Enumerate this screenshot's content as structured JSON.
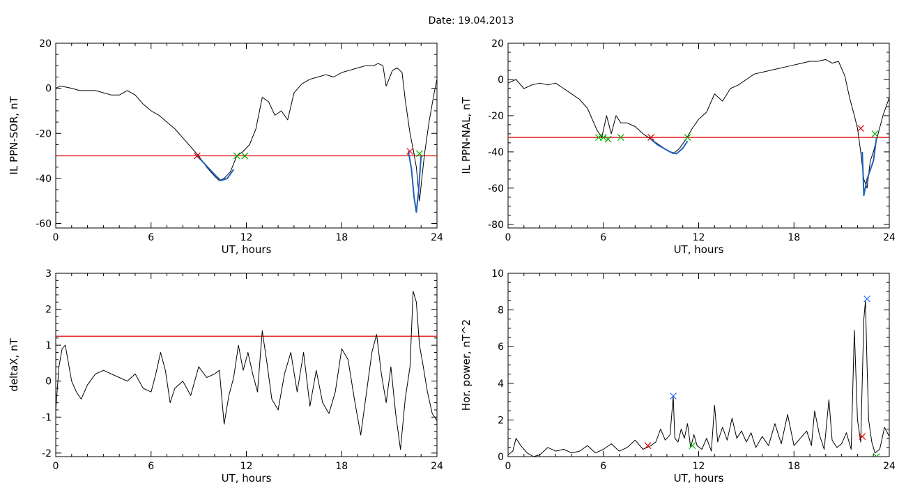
{
  "figure": {
    "title": "Date:  19.04.2013"
  },
  "chart_data": [
    {
      "type": "line",
      "xlabel": "UT, hours",
      "ylabel": "IL PPN-SOR, nT",
      "xlim": [
        0,
        24
      ],
      "ylim": [
        -62,
        20
      ],
      "xticks": [
        "0",
        "6",
        "12",
        "18",
        "24"
      ],
      "yticks": [
        -60,
        -40,
        -20,
        0,
        20
      ],
      "grid": false,
      "colors": {
        "line": "#000000",
        "highlight": "#1f5fbf",
        "threshold": "#e00000"
      },
      "threshold": -30,
      "series": [
        {
          "role": "main",
          "x": [
            0,
            0.3,
            1,
            1.5,
            2,
            2.5,
            3,
            3.5,
            4,
            4.5,
            5,
            5.5,
            6,
            6.5,
            7,
            7.5,
            8,
            8.5,
            9,
            9.5,
            10,
            10.3,
            10.6,
            11,
            11.4,
            11.8,
            12.2,
            12.6,
            13.0,
            13.4,
            13.8,
            14.2,
            14.6,
            15,
            15.5,
            16,
            16.5,
            17,
            17.5,
            18,
            18.5,
            19,
            19.5,
            20,
            20.3,
            20.6,
            20.8,
            21.2,
            21.5,
            21.8,
            22.0,
            22.3,
            22.5,
            22.7,
            22.9,
            23.2,
            23.5,
            23.8,
            24
          ],
          "y": [
            0,
            1,
            0,
            -1,
            -1,
            -1,
            -2,
            -3,
            -3,
            -1,
            -3,
            -7,
            -10,
            -12,
            -15,
            -18,
            -22,
            -26,
            -30,
            -35,
            -39,
            -41,
            -40,
            -37,
            -30,
            -28,
            -25,
            -18,
            -4,
            -6,
            -12,
            -10,
            -14,
            -2,
            2,
            4,
            5,
            6,
            5,
            7,
            8,
            9,
            10,
            10,
            11,
            10,
            1,
            8,
            9,
            7,
            -5,
            -20,
            -27,
            -35,
            -50,
            -30,
            -15,
            -3,
            4
          ]
        },
        {
          "role": "highlight",
          "x": [
            8.9,
            9.3,
            9.7,
            10.1,
            10.4,
            10.8,
            11.2
          ],
          "y": [
            -30,
            -33,
            -36,
            -39,
            -41,
            -40,
            -36
          ]
        },
        {
          "role": "highlight",
          "x": [
            22.2,
            22.4,
            22.55,
            22.7,
            22.85,
            23.0
          ],
          "y": [
            -28,
            -36,
            -48,
            -55,
            -45,
            -30
          ]
        }
      ],
      "markers": [
        {
          "x": 8.9,
          "y": -30,
          "color": "#e00000"
        },
        {
          "x": 11.4,
          "y": -30,
          "color": "#00b000"
        },
        {
          "x": 11.9,
          "y": -30,
          "color": "#00b000"
        },
        {
          "x": 22.3,
          "y": -28,
          "color": "#e00000"
        },
        {
          "x": 22.9,
          "y": -29,
          "color": "#00b000"
        }
      ]
    },
    {
      "type": "line",
      "xlabel": "UT, hours",
      "ylabel": "IL PPN-NAL, nT",
      "xlim": [
        0,
        24
      ],
      "ylim": [
        -82,
        20
      ],
      "xticks": [
        "0",
        "6",
        "12",
        "18",
        "24"
      ],
      "yticks": [
        -80,
        -60,
        -40,
        -20,
        0,
        20
      ],
      "grid": false,
      "colors": {
        "line": "#000000",
        "highlight": "#1f5fbf",
        "threshold": "#e00000"
      },
      "threshold": -32,
      "series": [
        {
          "role": "main",
          "x": [
            0,
            0.5,
            1,
            1.5,
            2,
            2.5,
            3,
            3.5,
            4,
            4.5,
            5,
            5.3,
            5.6,
            5.9,
            6.2,
            6.5,
            6.8,
            7.1,
            7.5,
            8,
            8.5,
            9,
            9.5,
            10,
            10.4,
            10.8,
            11.2,
            11.6,
            12,
            12.5,
            13,
            13.5,
            14,
            14.5,
            15,
            15.5,
            16,
            16.5,
            17,
            17.5,
            18,
            18.5,
            19,
            19.5,
            20,
            20.4,
            20.8,
            21.2,
            21.5,
            21.8,
            22.0,
            22.2,
            22.4,
            22.6,
            22.8,
            23.0,
            23.3,
            23.6,
            24
          ],
          "y": [
            -2,
            0,
            -5,
            -3,
            -2,
            -3,
            -2,
            -5,
            -8,
            -11,
            -16,
            -22,
            -28,
            -32,
            -20,
            -30,
            -20,
            -24,
            -24,
            -26,
            -30,
            -33,
            -36,
            -39,
            -41,
            -38,
            -33,
            -27,
            -22,
            -18,
            -8,
            -12,
            -5,
            -3,
            0,
            3,
            4,
            5,
            6,
            7,
            8,
            9,
            10,
            10,
            11,
            9,
            10,
            2,
            -10,
            -20,
            -27,
            -40,
            -55,
            -60,
            -45,
            -40,
            -30,
            -20,
            -10
          ]
        },
        {
          "role": "highlight",
          "x": [
            9.0,
            9.4,
            9.8,
            10.2,
            10.6,
            11.0,
            11.3
          ],
          "y": [
            -33,
            -36,
            -38,
            -40,
            -41,
            -38,
            -34
          ]
        },
        {
          "role": "highlight",
          "x": [
            22.3,
            22.4,
            22.6,
            22.8,
            23.0,
            23.2
          ],
          "y": [
            -40,
            -64,
            -55,
            -50,
            -45,
            -32
          ]
        }
      ],
      "markers": [
        {
          "x": 5.7,
          "y": -32,
          "color": "#00b000"
        },
        {
          "x": 6.0,
          "y": -32,
          "color": "#00b000"
        },
        {
          "x": 6.3,
          "y": -33,
          "color": "#00b000"
        },
        {
          "x": 7.1,
          "y": -32,
          "color": "#00b000"
        },
        {
          "x": 9.0,
          "y": -32,
          "color": "#e00000"
        },
        {
          "x": 11.3,
          "y": -32,
          "color": "#00b000"
        },
        {
          "x": 22.2,
          "y": -27,
          "color": "#e00000"
        },
        {
          "x": 23.1,
          "y": -30,
          "color": "#00b000"
        }
      ]
    },
    {
      "type": "line",
      "xlabel": "UT, hours",
      "ylabel": "deltaX, nT",
      "xlim": [
        0,
        24
      ],
      "ylim": [
        -2.1,
        3
      ],
      "xticks": [
        "0",
        "6",
        "12",
        "18",
        "24"
      ],
      "yticks": [
        -2,
        -1,
        0,
        1,
        2,
        3
      ],
      "grid": false,
      "colors": {
        "line": "#000000",
        "threshold": "#e00000"
      },
      "threshold": 1.25,
      "series": [
        {
          "role": "main",
          "x": [
            0,
            0.2,
            0.4,
            0.6,
            0.8,
            1.0,
            1.3,
            1.6,
            2.0,
            2.5,
            3.0,
            3.5,
            4.0,
            4.5,
            5.0,
            5.5,
            6.0,
            6.3,
            6.6,
            6.9,
            7.2,
            7.5,
            8.0,
            8.5,
            9.0,
            9.5,
            10.0,
            10.3,
            10.6,
            10.9,
            11.2,
            11.5,
            11.8,
            12.1,
            12.4,
            12.7,
            13.0,
            13.3,
            13.6,
            14.0,
            14.4,
            14.8,
            15.2,
            15.6,
            16.0,
            16.4,
            16.8,
            17.2,
            17.6,
            18.0,
            18.4,
            18.8,
            19.2,
            19.6,
            19.9,
            20.2,
            20.5,
            20.8,
            21.1,
            21.4,
            21.7,
            22.0,
            22.3,
            22.5,
            22.7,
            22.9,
            23.1,
            23.4,
            23.7,
            24
          ],
          "y": [
            -0.8,
            0.4,
            0.9,
            1.0,
            0.5,
            0.0,
            -0.3,
            -0.5,
            -0.1,
            0.2,
            0.3,
            0.2,
            0.1,
            0.0,
            0.2,
            -0.2,
            -0.3,
            0.2,
            0.8,
            0.3,
            -0.6,
            -0.2,
            0.0,
            -0.4,
            0.4,
            0.1,
            0.2,
            0.3,
            -1.2,
            -0.4,
            0.1,
            1.0,
            0.3,
            0.8,
            0.2,
            -0.3,
            1.4,
            0.5,
            -0.5,
            -0.8,
            0.2,
            0.8,
            -0.3,
            0.8,
            -0.7,
            0.3,
            -0.6,
            -0.9,
            -0.3,
            0.9,
            0.6,
            -0.5,
            -1.5,
            -0.2,
            0.8,
            1.3,
            0.2,
            -0.6,
            0.4,
            -0.9,
            -1.9,
            -0.5,
            0.4,
            2.5,
            2.2,
            1.0,
            0.5,
            -0.3,
            -0.9,
            -1.1
          ]
        }
      ],
      "markers": []
    },
    {
      "type": "line",
      "xlabel": "UT, hours",
      "ylabel": "Hor. power, nT^2",
      "xlim": [
        0,
        24
      ],
      "ylim": [
        0,
        10
      ],
      "xticks": [
        "0",
        "6",
        "12",
        "18",
        "24"
      ],
      "yticks": [
        0,
        2,
        4,
        6,
        8,
        10
      ],
      "grid": false,
      "colors": {
        "line": "#000000"
      },
      "series": [
        {
          "role": "main",
          "x": [
            0,
            0.3,
            0.5,
            0.8,
            1.2,
            1.6,
            2.0,
            2.5,
            3.0,
            3.5,
            4.0,
            4.5,
            5.0,
            5.5,
            6.0,
            6.5,
            7.0,
            7.5,
            8.0,
            8.5,
            9.0,
            9.3,
            9.6,
            9.9,
            10.2,
            10.4,
            10.5,
            10.7,
            10.9,
            11.1,
            11.3,
            11.5,
            11.7,
            11.9,
            12.2,
            12.5,
            12.8,
            13.0,
            13.2,
            13.5,
            13.8,
            14.1,
            14.4,
            14.7,
            15.0,
            15.3,
            15.6,
            16.0,
            16.4,
            16.8,
            17.2,
            17.6,
            18.0,
            18.4,
            18.8,
            19.1,
            19.3,
            19.6,
            19.9,
            20.2,
            20.4,
            20.7,
            21.0,
            21.3,
            21.6,
            21.8,
            22.0,
            22.2,
            22.4,
            22.5,
            22.6,
            22.7,
            22.9,
            23.1,
            23.4,
            23.7,
            24
          ],
          "y": [
            0.1,
            0.3,
            1.0,
            0.6,
            0.2,
            0.0,
            0.1,
            0.5,
            0.3,
            0.4,
            0.2,
            0.3,
            0.6,
            0.2,
            0.4,
            0.7,
            0.3,
            0.5,
            0.9,
            0.4,
            0.6,
            0.8,
            1.5,
            0.9,
            1.2,
            3.3,
            1.0,
            0.8,
            1.5,
            1.0,
            1.8,
            0.5,
            1.2,
            0.6,
            0.4,
            1.0,
            0.3,
            2.8,
            0.8,
            1.6,
            0.9,
            2.1,
            1.0,
            1.4,
            0.8,
            1.3,
            0.5,
            1.1,
            0.6,
            1.8,
            0.7,
            2.3,
            0.6,
            1.0,
            1.4,
            0.6,
            2.5,
            1.2,
            0.4,
            3.1,
            0.9,
            0.5,
            0.7,
            1.3,
            0.4,
            6.9,
            2.0,
            0.8,
            7.5,
            8.5,
            5.0,
            2.0,
            0.8,
            0.2,
            0.4,
            1.6,
            1.1
          ]
        }
      ],
      "markers": [
        {
          "x": 8.8,
          "y": 0.6,
          "color": "#e00000"
        },
        {
          "x": 10.4,
          "y": 3.3,
          "color": "#3070ff"
        },
        {
          "x": 11.6,
          "y": 0.6,
          "color": "#00b000"
        },
        {
          "x": 22.3,
          "y": 1.1,
          "color": "#e00000"
        },
        {
          "x": 22.6,
          "y": 8.6,
          "color": "#3070ff"
        },
        {
          "x": 23.2,
          "y": 0.0,
          "color": "#00b000"
        }
      ]
    }
  ]
}
